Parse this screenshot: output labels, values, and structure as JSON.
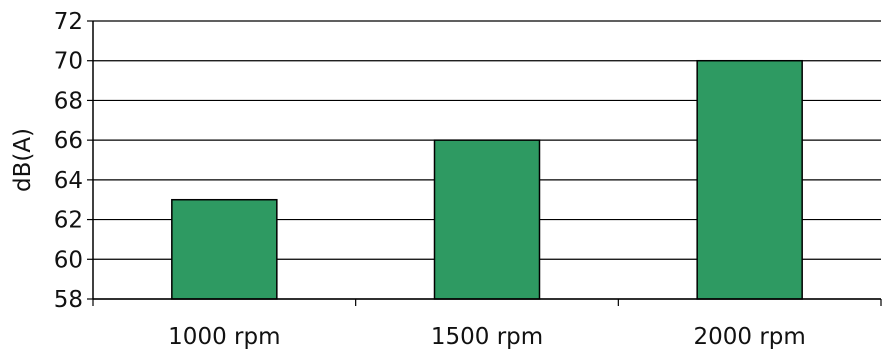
{
  "chart_data": {
    "type": "bar",
    "categories": [
      "1000 rpm",
      "1500 rpm",
      "2000 rpm"
    ],
    "values": [
      63,
      66,
      70
    ],
    "xlabel": "",
    "ylabel": "dB(A)",
    "ylim": [
      58,
      72
    ],
    "yticks": [
      58,
      60,
      62,
      64,
      66,
      68,
      70,
      72
    ],
    "grid": true,
    "legend": "none",
    "bar_color": "#2e9a62",
    "bar_edge_color": "#000000"
  }
}
